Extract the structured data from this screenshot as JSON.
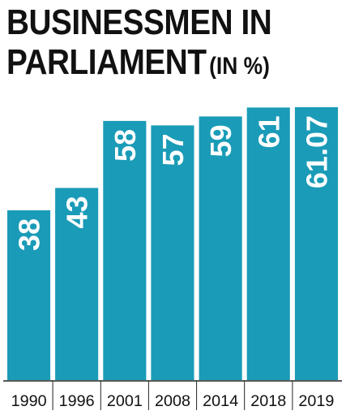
{
  "title": {
    "main_line1": "BUSINESSMEN IN",
    "main_line2": "PARLIAMENT",
    "unit": "(IN %)"
  },
  "colors": {
    "bar": "#1a9bb7",
    "bar_label": "#ffffff",
    "axis": "#222222",
    "text": "#111111"
  },
  "chart_data": {
    "type": "bar",
    "title": "BUSINESSMEN IN PARLIAMENT (IN %)",
    "xlabel": "",
    "ylabel": "",
    "categories": [
      "1990",
      "1996",
      "2001",
      "2008",
      "2014",
      "2018",
      "2019"
    ],
    "values": [
      38,
      43,
      58,
      57,
      59,
      61,
      61.07
    ],
    "value_labels": [
      "38",
      "43",
      "58",
      "57",
      "59",
      "61",
      "61.07"
    ],
    "value_label_orientation": "vertical",
    "ylim": [
      0,
      61.07
    ],
    "grid": false,
    "legend": "none"
  }
}
